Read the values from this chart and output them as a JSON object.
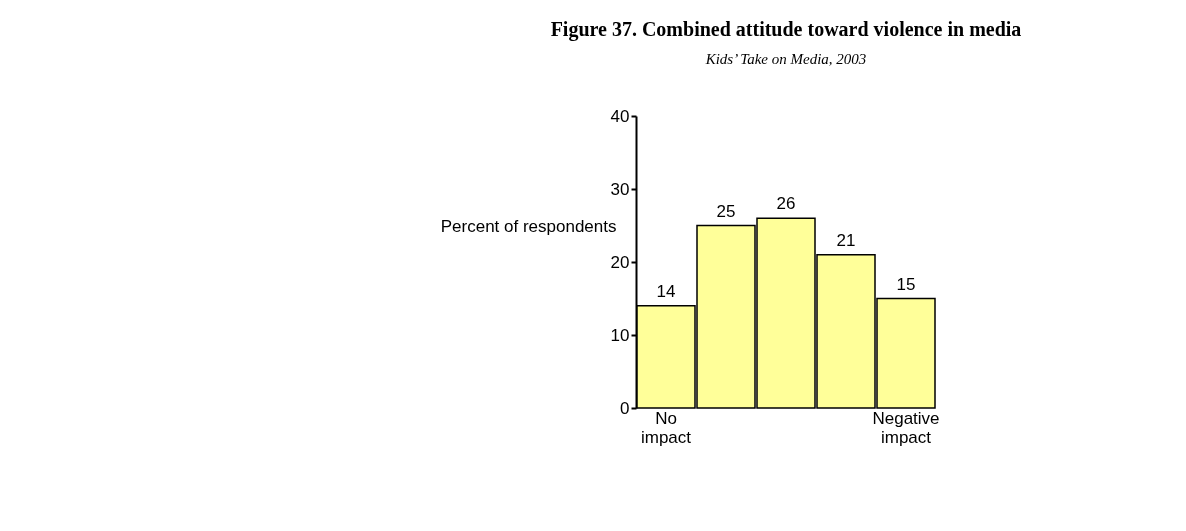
{
  "chart_data": {
    "type": "bar",
    "title": "Figure 37. Combined attitude toward violence in media",
    "subtitle": "Kids’ Take on Media, 2003",
    "ylabel": "Percent of respondents",
    "categories": [
      "No impact",
      null,
      null,
      null,
      "Negative impact"
    ],
    "values": [
      14,
      25,
      26,
      21,
      15
    ],
    "color": "#ffff99",
    "ylim": [
      0,
      40
    ],
    "yticks": [
      0,
      10,
      20,
      30,
      40
    ],
    "grid": false,
    "data_labels": true
  }
}
